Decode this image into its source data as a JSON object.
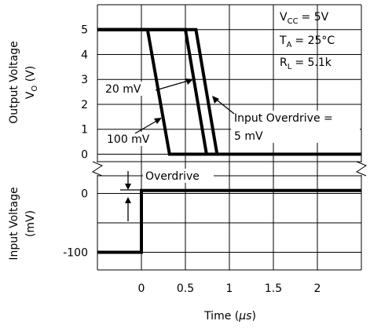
{
  "chart_data": {
    "type": "line",
    "title": "",
    "xlabel_prefix": "Time (",
    "xlabel_unit": "µs",
    "xlabel_suffix": ")",
    "x_range": [
      -0.5,
      2.5
    ],
    "xticks": [
      "0",
      "0.5",
      "1",
      "1.5",
      "2"
    ],
    "xtick_values": [
      0,
      0.5,
      1,
      1.5,
      2
    ],
    "grid": true,
    "conditions": {
      "vcc_label": "V",
      "vcc_sub": "CC",
      "vcc_value": "= 5V",
      "ta_label": "T",
      "ta_sub": "A",
      "ta_value": "= 25°C",
      "rl_label": "R",
      "rl_sub": "L",
      "rl_value": "= 5.1k"
    },
    "output_panel": {
      "ylabel_line1": "Output Voltage",
      "ylabel_prefix": "V",
      "ylabel_sub": "O",
      "ylabel_suffix": " (V)",
      "y_range": [
        -0.3,
        6
      ],
      "yticks": [
        "0",
        "1",
        "2",
        "3",
        "4",
        "5"
      ],
      "ytick_values": [
        0,
        1,
        2,
        3,
        4,
        5
      ],
      "series": [
        {
          "name": "100 mV",
          "x": [
            -0.5,
            0.07,
            0.32,
            2.5
          ],
          "y": [
            5,
            5,
            0,
            0
          ]
        },
        {
          "name": "20 mV",
          "x": [
            -0.5,
            0.5,
            0.74,
            2.5
          ],
          "y": [
            5,
            5,
            0,
            0
          ]
        },
        {
          "name": "5 mV",
          "x": [
            -0.5,
            0.62,
            0.86,
            2.5
          ],
          "y": [
            5,
            5,
            0,
            0
          ]
        }
      ],
      "annotations": {
        "label_20mv": "20 mV",
        "label_100mv": "100 mV",
        "label_overdrive_line1": "Input Overdrive =",
        "label_overdrive_line2": "5 mV"
      }
    },
    "input_panel": {
      "ylabel_line1": "Input Voltage",
      "ylabel_line2": "(mV)",
      "y_range": [
        -130,
        30
      ],
      "yticks": [
        "0",
        "-100"
      ],
      "ytick_values": [
        0,
        -100
      ],
      "series": [
        {
          "name": "Input",
          "x": [
            -0.5,
            0,
            0,
            2.5
          ],
          "y": [
            -100,
            -100,
            5,
            5
          ]
        }
      ],
      "annotations": {
        "overdrive_label": "Overdrive"
      }
    }
  }
}
